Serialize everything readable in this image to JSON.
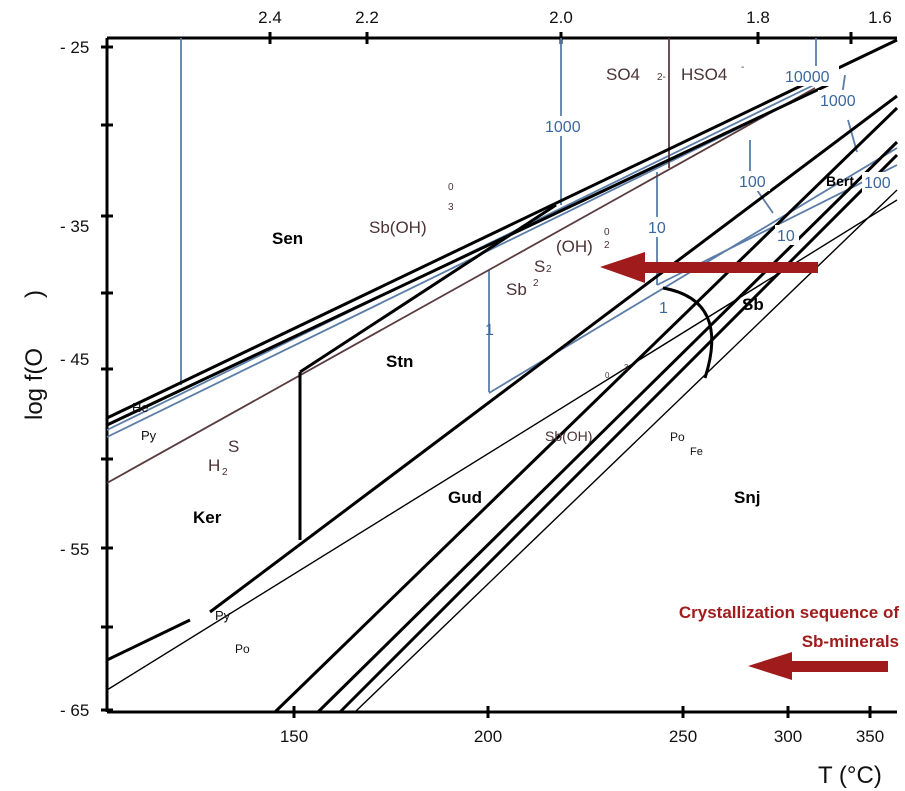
{
  "axes": {
    "y_label_main": "log  f(O",
    "y_label_close": ")",
    "x_label": "T (°C)",
    "y_ticks": [
      "- 25",
      "- 35",
      "- 45",
      "- 55",
      "- 65"
    ],
    "x_ticks_bottom": [
      "150",
      "200",
      "250",
      "300",
      "350"
    ],
    "x_ticks_top": [
      "2.4",
      "2.2",
      "2.0",
      "1.8",
      "1.6"
    ]
  },
  "fields": {
    "sen": "Sen",
    "stn": "Stn",
    "ker": "Ker",
    "gud": "Gud",
    "snj": "Snj",
    "sb": "Sb",
    "bert": "Bert"
  },
  "minerals": {
    "he": "He",
    "py_upper": "Py",
    "py_lower": "Py",
    "po_lower": "Po",
    "po_mid": "Po",
    "fe": "Fe"
  },
  "species": {
    "so4": "SO4",
    "so4_charge": "2-",
    "hso4": "HSO4",
    "hso4_charge": "-",
    "sboh3_upper": "Sb(OH)",
    "sboh3_upper_sup": "0",
    "sboh3_upper_sub": "3",
    "oh2": "(OH)",
    "oh2_sup": "0",
    "oh2_sub": "2",
    "s2": "S",
    "s2_sub": "2",
    "sb2": "Sb",
    "sb2_sub": "2",
    "sboh3_lower": "Sb(OH)",
    "sboh3_lower_sup0": "0",
    "sboh3_lower_sup3": "3",
    "h2s_s": "S",
    "h2s_h": "H",
    "h2s_sub": "2"
  },
  "isolines": {
    "c10000": "10000",
    "c1000_top": "1000",
    "c1000_mid": "1000",
    "c100_a": "100",
    "c100_b": "100",
    "c10_a": "10",
    "c10_b": "10",
    "c1_a": "1",
    "c1_b": "1"
  },
  "annotations": {
    "note_line1": "Crystallization sequence of",
    "note_line2": "Sb-minerals"
  },
  "colors": {
    "arrow": "#a01c1c",
    "isoline": "#5b7da8",
    "aqueous_boundary": "#5a3c3e"
  }
}
